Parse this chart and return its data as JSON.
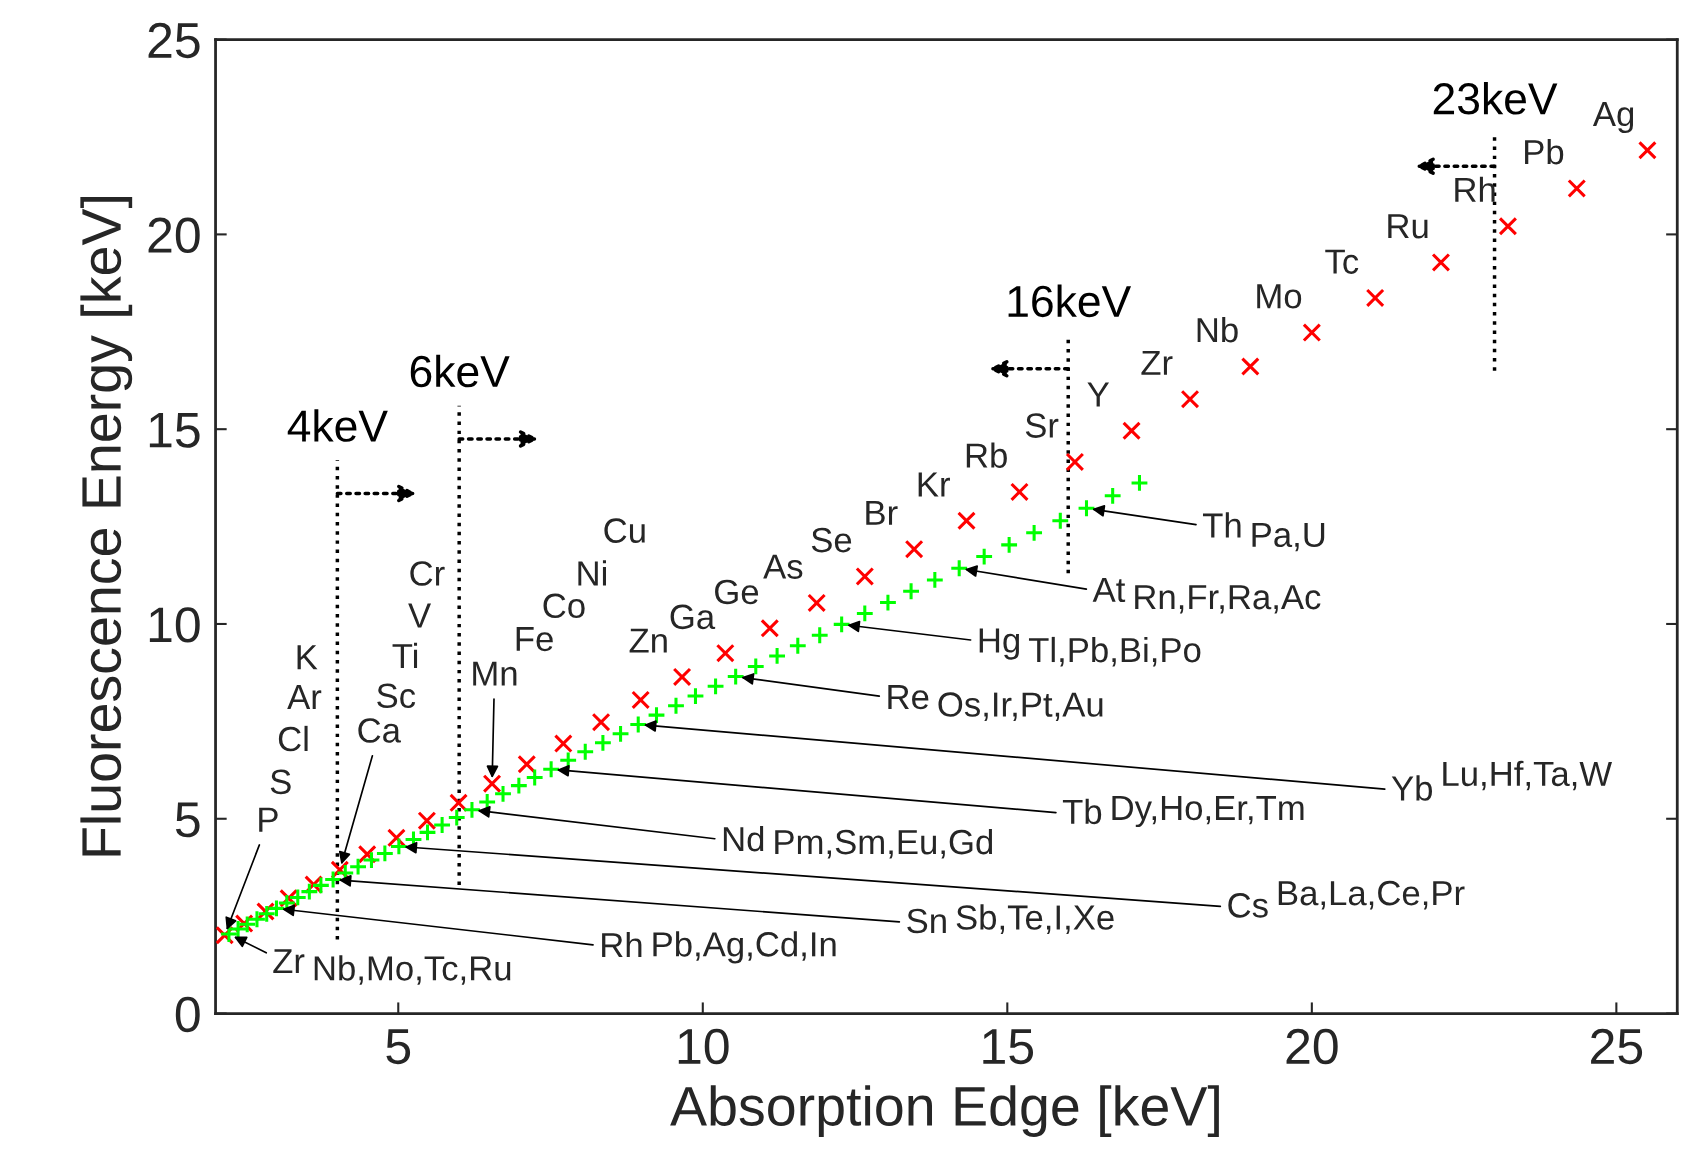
{
  "chart_data": {
    "type": "scatter",
    "xlabel": "Absorption Edge [keV]",
    "ylabel": "Fluorescence Energy [keV]",
    "xlim": [
      2,
      26
    ],
    "ylim": [
      0,
      25
    ],
    "xticks": [
      5,
      10,
      15,
      20,
      25
    ],
    "yticks": [
      0,
      5,
      10,
      15,
      20,
      25
    ],
    "grid": false,
    "series": [
      {
        "color": "#ff0000",
        "marker": "cross",
        "x": [
          2.15,
          2.47,
          2.82,
          3.2,
          3.61,
          4.04,
          4.49,
          4.97,
          5.47,
          5.99,
          6.54,
          7.11,
          7.71,
          8.33,
          8.98,
          9.66,
          10.37,
          11.1,
          11.87,
          12.66,
          13.47,
          14.33,
          15.2,
          16.11,
          17.04,
          18.0,
          18.99,
          20.0,
          21.04,
          22.12,
          23.22,
          24.35,
          25.51
        ],
        "values": [
          2.01,
          2.31,
          2.62,
          2.96,
          3.31,
          3.69,
          4.09,
          4.51,
          4.95,
          5.41,
          5.9,
          6.4,
          6.93,
          7.48,
          8.05,
          8.64,
          9.25,
          9.89,
          10.54,
          11.22,
          11.92,
          12.65,
          13.39,
          14.16,
          14.96,
          15.77,
          16.61,
          17.48,
          18.37,
          19.28,
          20.21,
          21.18,
          22.16
        ]
      },
      {
        "color": "#00ff00",
        "marker": "plus",
        "x": [
          2.22,
          2.37,
          2.52,
          2.68,
          2.84,
          3.0,
          3.17,
          3.35,
          3.54,
          3.73,
          3.93,
          4.13,
          4.34,
          4.56,
          4.78,
          5.01,
          5.25,
          5.48,
          5.72,
          5.96,
          6.21,
          6.46,
          6.72,
          6.98,
          7.24,
          7.51,
          7.79,
          8.07,
          8.36,
          8.65,
          8.94,
          9.24,
          9.56,
          9.88,
          10.21,
          10.54,
          10.87,
          11.22,
          11.56,
          11.92,
          12.28,
          12.66,
          13.04,
          13.42,
          13.81,
          14.21,
          14.62,
          15.03,
          15.44,
          15.87,
          16.3,
          16.73,
          17.17
        ],
        "values": [
          2.04,
          2.17,
          2.29,
          2.42,
          2.56,
          2.7,
          2.84,
          2.98,
          3.13,
          3.29,
          3.44,
          3.61,
          3.77,
          3.94,
          4.11,
          4.29,
          4.47,
          4.65,
          4.84,
          5.03,
          5.23,
          5.43,
          5.64,
          5.85,
          6.06,
          6.27,
          6.5,
          6.72,
          6.95,
          7.18,
          7.42,
          7.66,
          7.9,
          8.15,
          8.4,
          8.65,
          8.91,
          9.18,
          9.44,
          9.71,
          9.99,
          10.27,
          10.55,
          10.84,
          11.13,
          11.43,
          11.73,
          12.03,
          12.34,
          12.65,
          12.97,
          13.29,
          13.62
        ]
      }
    ],
    "ref_lines": [
      {
        "axis": "x",
        "value": 4,
        "label": "4keV",
        "color": "#000000",
        "line_style": "dotted"
      },
      {
        "axis": "x",
        "value": 6,
        "label": "6keV",
        "color": "#000000",
        "line_style": "dotted"
      },
      {
        "axis": "x",
        "value": 16,
        "label": "16keV",
        "color": "#000000",
        "line_style": "dotted"
      },
      {
        "axis": "x",
        "value": 23,
        "label": "23keV",
        "color": "#000000",
        "line_style": "dotted"
      }
    ],
    "annotations": [
      {
        "text": "P",
        "x": 2.15,
        "y": 2.01
      },
      "S",
      "Cl",
      "Ar",
      "K",
      {
        "text": "Ca",
        "x": 4.04,
        "y": 3.69
      },
      "Sc",
      "Ti",
      "V",
      "Cr",
      {
        "text": "Mn",
        "x": 6.54,
        "y": 5.9
      },
      "Fe",
      "Co",
      "Ni",
      "Cu",
      {
        "text": "Zn",
        "x": 9.66,
        "y": 8.64
      },
      {
        "text": "Ga",
        "x": 10.37,
        "y": 9.25
      },
      {
        "text": "Ge",
        "x": 11.1,
        "y": 9.89
      },
      {
        "text": "As",
        "x": 11.87,
        "y": 10.54
      },
      {
        "text": "Se",
        "x": 12.66,
        "y": 11.22
      },
      {
        "text": "Br",
        "x": 13.47,
        "y": 11.92
      },
      {
        "text": "Kr",
        "x": 14.33,
        "y": 12.65
      },
      {
        "text": "Rb",
        "x": 15.2,
        "y": 13.39
      },
      {
        "text": "Sr",
        "x": 16.11,
        "y": 14.16
      },
      {
        "text": "Y",
        "x": 17.04,
        "y": 14.96
      },
      {
        "text": "Zr",
        "x": 18.0,
        "y": 15.77
      },
      {
        "text": "Nb",
        "x": 18.99,
        "y": 16.61
      },
      {
        "text": "Mo",
        "x": 20.0,
        "y": 17.48
      },
      {
        "text": "Tc",
        "x": 21.04,
        "y": 18.37
      },
      {
        "text": "Ru",
        "x": 22.12,
        "y": 19.28
      },
      {
        "text": "Rh",
        "x": 23.22,
        "y": 20.21
      },
      {
        "text": "Pb",
        "x": 24.35,
        "y": 21.18
      },
      {
        "text": "Ag",
        "x": 25.51,
        "y": 22.16
      },
      {
        "text": "Zr",
        "x": 2.22,
        "y": 2.04
      },
      "Nb,Mo,Tc,Ru",
      {
        "text": "Rh",
        "x": 3.0,
        "y": 2.7
      },
      "Pb,Ag,Cd,In",
      {
        "text": "Sn",
        "x": 3.93,
        "y": 3.44
      },
      "Sb,Te,I,Xe",
      {
        "text": "Cs",
        "x": 5.01,
        "y": 4.29
      },
      "Ba,La,Ce,Pr",
      {
        "text": "Nd",
        "x": 6.21,
        "y": 5.23
      },
      "Pm,Sm,Eu,Gd",
      {
        "text": "Tb",
        "x": 7.51,
        "y": 6.27
      },
      "Dy,Ho,Er,Tm",
      {
        "text": "Yb",
        "x": 8.94,
        "y": 7.42
      },
      "Lu,Hf,Ta,W",
      {
        "text": "Re",
        "x": 10.54,
        "y": 8.65
      },
      "Os,Ir,Pt,Au",
      {
        "text": "Hg",
        "x": 12.28,
        "y": 9.99
      },
      "Tl,Pb,Bi,Po",
      {
        "text": "At",
        "x": 14.21,
        "y": 11.43
      },
      "Rn,Fr,Ra,Ac",
      {
        "text": "Th",
        "x": 16.3,
        "y": 12.97
      },
      "Pa,U"
    ]
  }
}
